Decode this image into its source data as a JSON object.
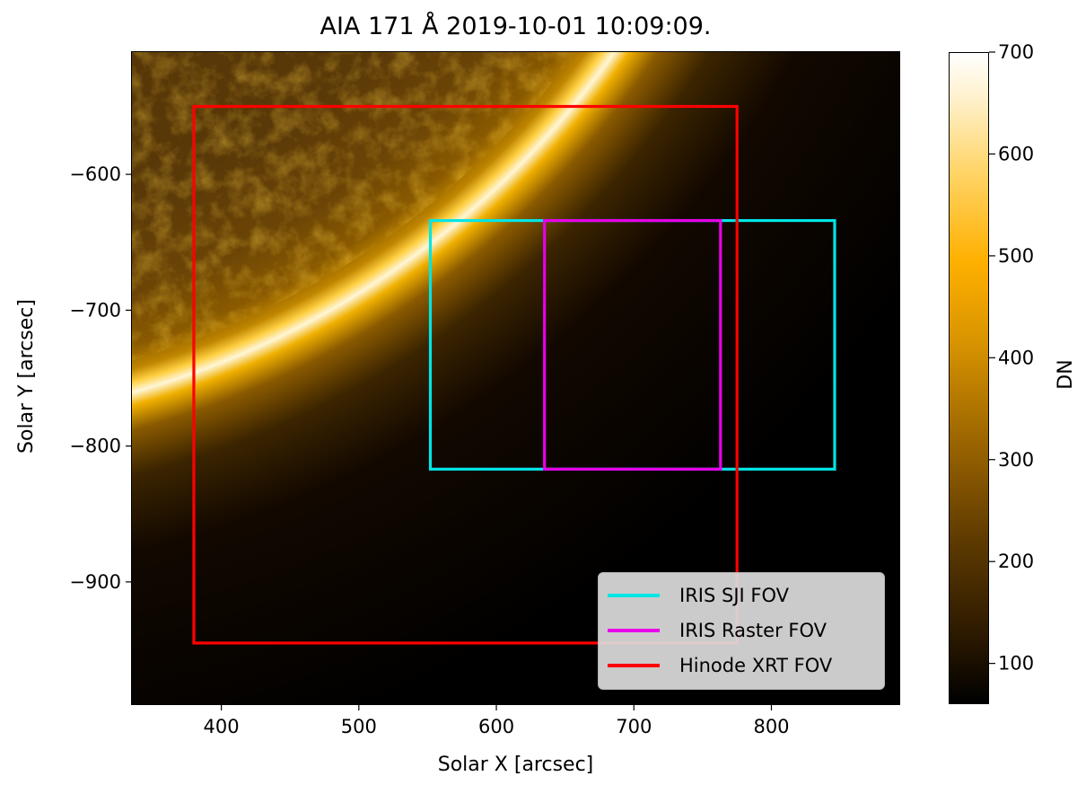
{
  "chart_data": {
    "type": "image",
    "title": "AIA 171 Å 2019-10-01 10:09:09.",
    "xlabel": "Solar X [arcsec]",
    "ylabel": "Solar Y [arcsec]",
    "xlim": [
      335,
      893
    ],
    "ylim": [
      -990,
      -510
    ],
    "xticks": [
      400,
      500,
      600,
      700,
      800
    ],
    "yticks": [
      -600,
      -700,
      -800,
      -900
    ],
    "colorbar": {
      "label": "DN",
      "range": [
        60,
        700
      ],
      "ticks": [
        100,
        200,
        300,
        400,
        500,
        600,
        700
      ],
      "colormap": "sdoaia171"
    },
    "fov_boxes": [
      {
        "name": "IRIS SJI FOV",
        "color": "#00e5e5",
        "x": [
          552,
          846
        ],
        "y": [
          -817,
          -634
        ]
      },
      {
        "name": "IRIS Raster FOV",
        "color": "#e800e8",
        "x": [
          635,
          763
        ],
        "y": [
          -817,
          -634
        ]
      },
      {
        "name": "Hinode XRT FOV",
        "color": "#ff0000",
        "x": [
          380,
          775
        ],
        "y": [
          -945,
          -550
        ]
      }
    ],
    "legend_position": "lower right"
  }
}
